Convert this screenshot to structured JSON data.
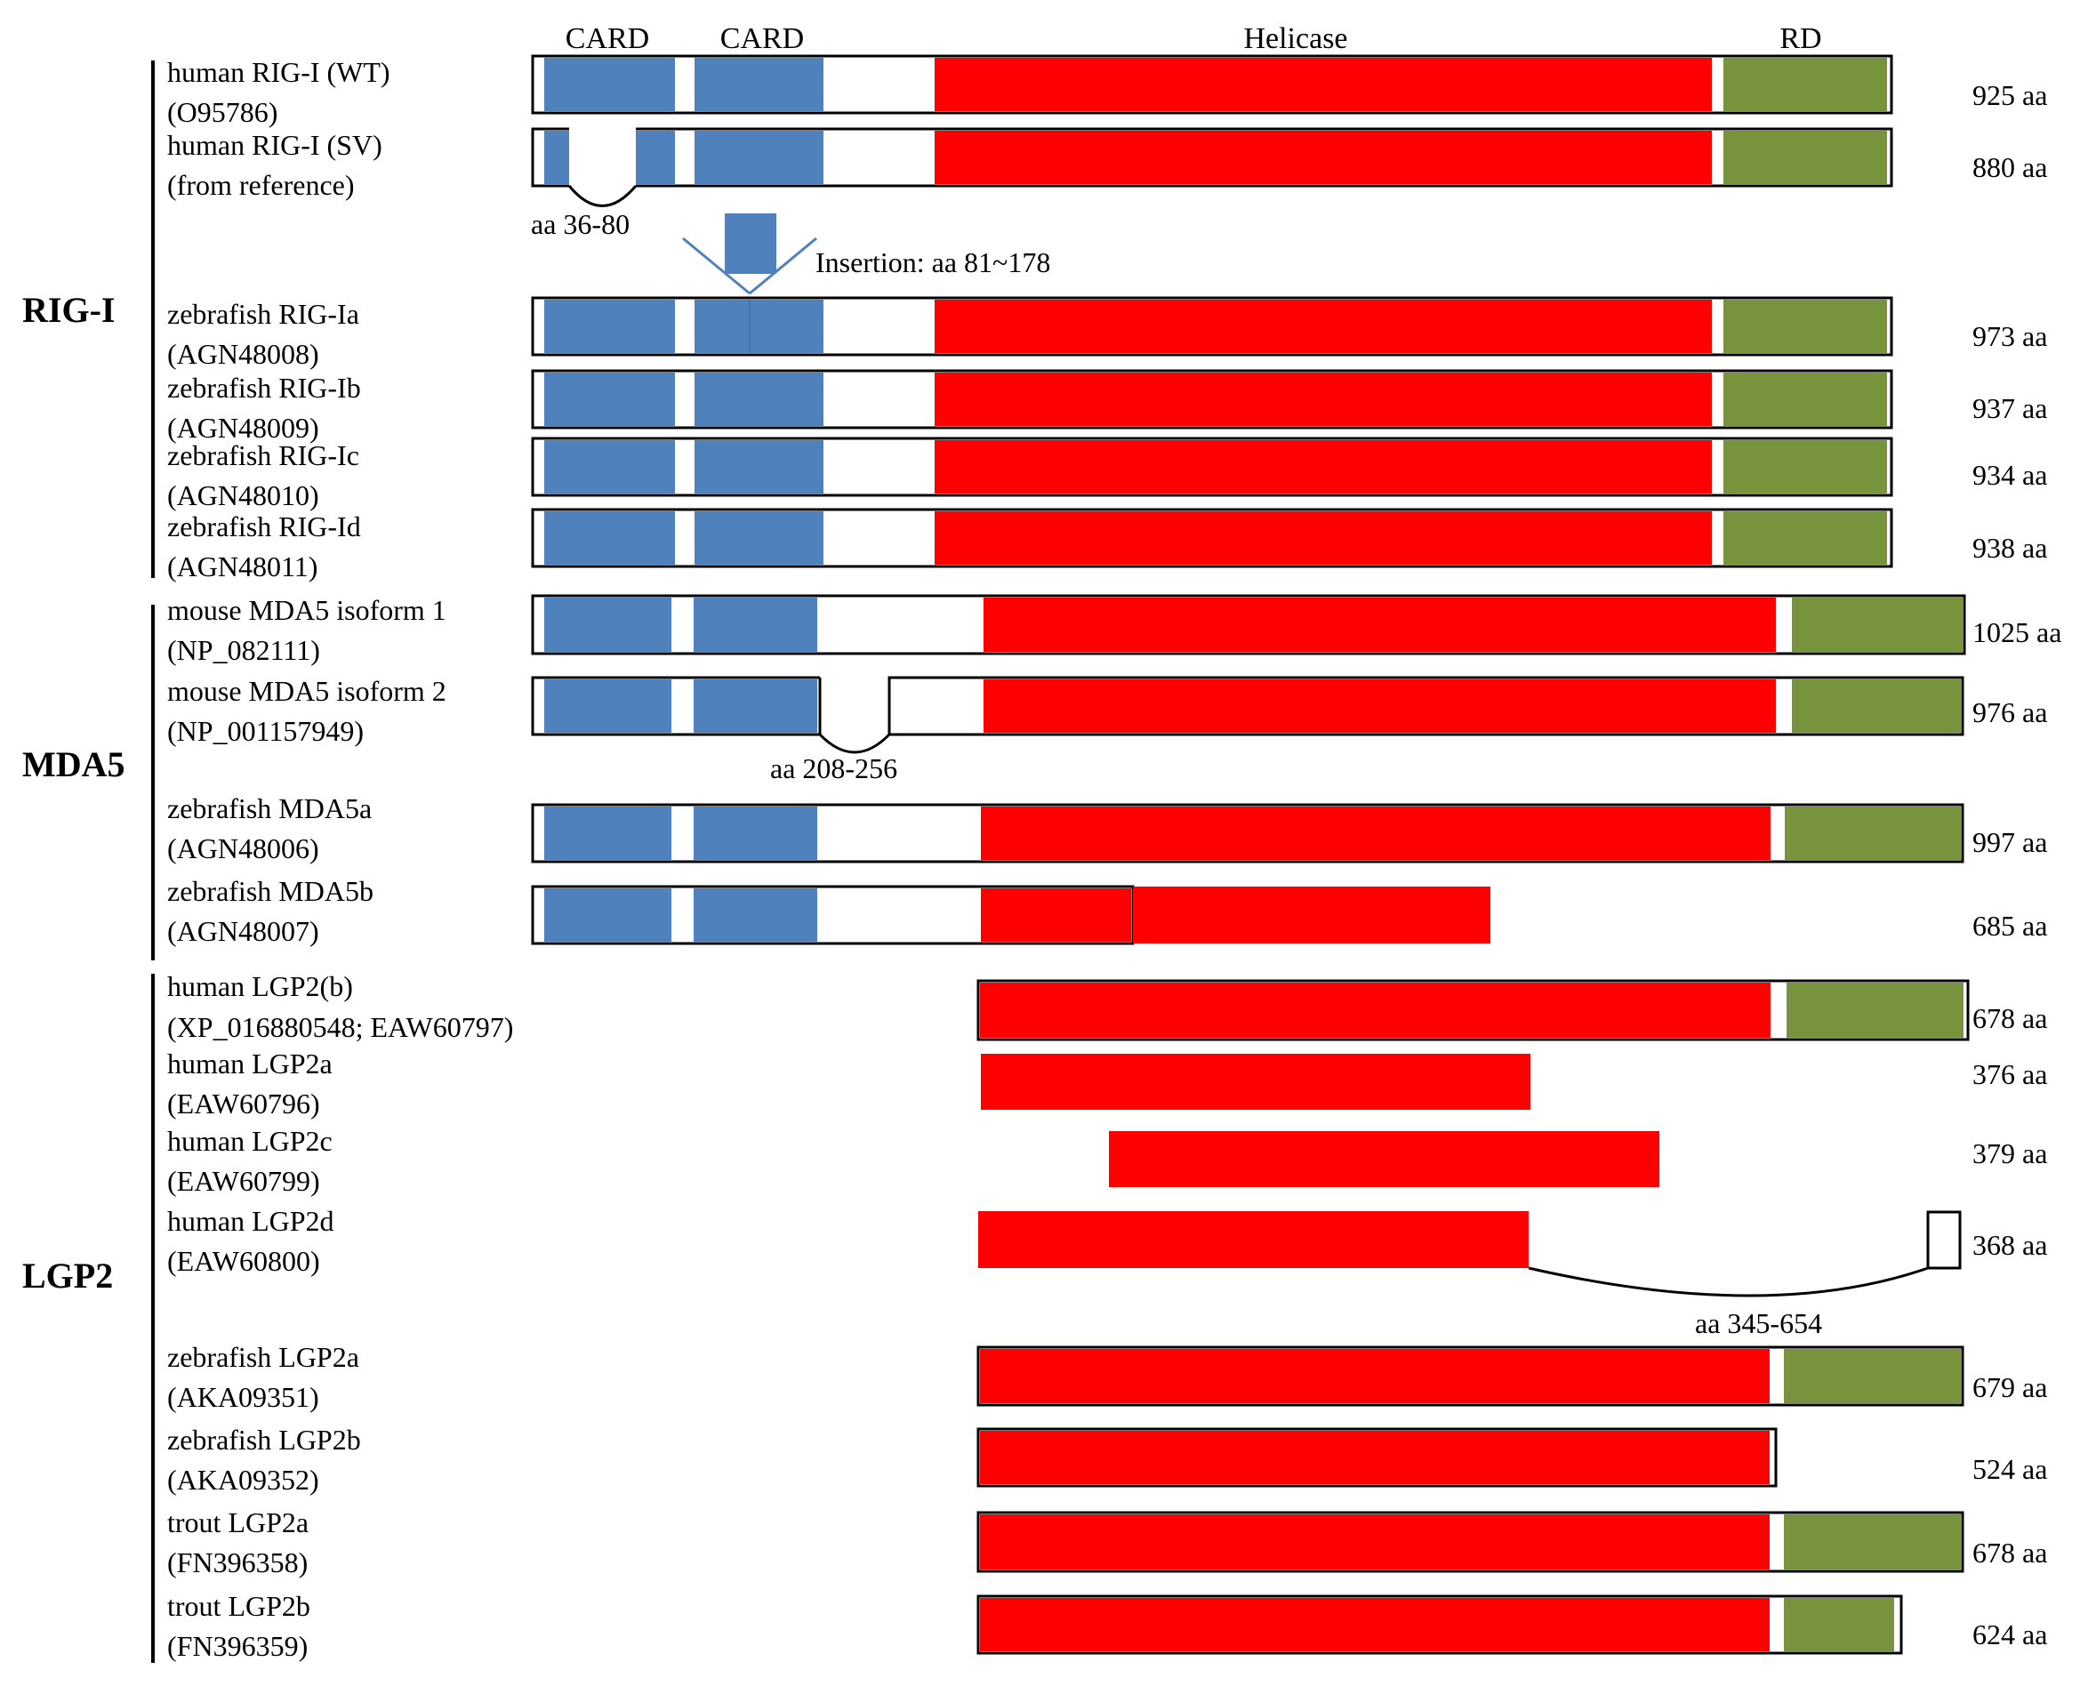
{
  "colors": {
    "card": "#4f81bd",
    "helicase": "#ff0000",
    "rd": "#77933c",
    "outline": "#000000",
    "connector": "#4f81bd"
  },
  "domain_headers": {
    "card1": "CARD",
    "card2": "CARD",
    "helicase": "Helicase",
    "rd": "RD"
  },
  "groups": {
    "rigi": "RIG-I",
    "mda5": "MDA5",
    "lgp2": "LGP2"
  },
  "annotations": {
    "rigi_sv_deletion": "aa 36-80",
    "rigi_insertion": "Insertion: aa 81~178",
    "mda5_iso2_deletion": "aa 208-256",
    "lgp2d_deletion": "aa 345-654"
  },
  "proteins": [
    {
      "key": "rigi-human-wt",
      "name": "human RIG-I (WT)",
      "accession": "(O95786)",
      "length": "925 aa"
    },
    {
      "key": "rigi-human-sv",
      "name": "human RIG-I (SV)",
      "accession": "(from reference)",
      "length": "880 aa"
    },
    {
      "key": "rigi-zf-a",
      "name": "zebrafish RIG-Ia",
      "accession": "(AGN48008)",
      "length": "973 aa"
    },
    {
      "key": "rigi-zf-b",
      "name": "zebrafish RIG-Ib",
      "accession": "(AGN48009)",
      "length": "937 aa"
    },
    {
      "key": "rigi-zf-c",
      "name": "zebrafish RIG-Ic",
      "accession": "(AGN48010)",
      "length": "934 aa"
    },
    {
      "key": "rigi-zf-d",
      "name": "zebrafish RIG-Id",
      "accession": "(AGN48011)",
      "length": "938 aa"
    },
    {
      "key": "mda5-mouse-1",
      "name": "mouse MDA5  isoform 1",
      "accession": "(NP_082111)",
      "length": "1025 aa"
    },
    {
      "key": "mda5-mouse-2",
      "name": "mouse MDA5  isoform 2",
      "accession": "(NP_001157949)",
      "length": "976 aa"
    },
    {
      "key": "mda5-zf-a",
      "name": "zebrafish MDA5a",
      "accession": "(AGN48006)",
      "length": "997 aa"
    },
    {
      "key": "mda5-zf-b",
      "name": "zebrafish MDA5b",
      "accession": "(AGN48007)",
      "length": "685 aa"
    },
    {
      "key": "lgp2-human-b",
      "name": "human LGP2(b)",
      "accession": "(XP_016880548; EAW60797)",
      "length": "678 aa"
    },
    {
      "key": "lgp2-human-a",
      "name": "human LGP2a",
      "accession": "(EAW60796)",
      "length": "376 aa"
    },
    {
      "key": "lgp2-human-c",
      "name": "human LGP2c",
      "accession": "(EAW60799)",
      "length": "379 aa"
    },
    {
      "key": "lgp2-human-d",
      "name": "human LGP2d",
      "accession": "(EAW60800)",
      "length": "368 aa"
    },
    {
      "key": "lgp2-zf-a",
      "name": "zebrafish LGP2a",
      "accession": "(AKA09351)",
      "length": "679 aa"
    },
    {
      "key": "lgp2-zf-b",
      "name": "zebrafish LGP2b",
      "accession": "(AKA09352)",
      "length": "524 aa"
    },
    {
      "key": "lgp2-trout-a",
      "name": "trout LGP2a",
      "accession": "(FN396358)",
      "length": "678 aa"
    },
    {
      "key": "lgp2-trout-b",
      "name": "trout LGP2b",
      "accession": "(FN396359)",
      "length": "624 aa"
    }
  ]
}
